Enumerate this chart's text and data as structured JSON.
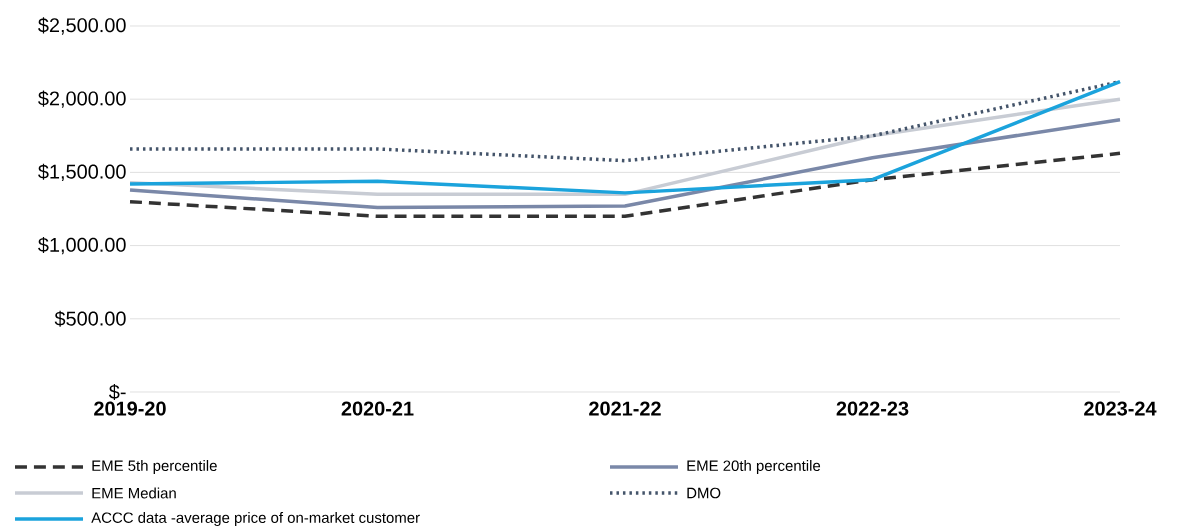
{
  "chart_data": {
    "type": "line",
    "categories": [
      "2019-20",
      "2020-21",
      "2021-22",
      "2022-23",
      "2023-24"
    ],
    "series": [
      {
        "name": "EME 5th percentile",
        "color": "#333333",
        "line_style": "dashed",
        "values": [
          1300,
          1200,
          1200,
          1450,
          1630
        ]
      },
      {
        "name": "EME 20th percentile",
        "color": "#7a88a8",
        "line_style": "solid",
        "values": [
          1380,
          1260,
          1270,
          1600,
          1860
        ]
      },
      {
        "name": "EME Median",
        "color": "#c8ccd4",
        "line_style": "solid",
        "values": [
          1430,
          1350,
          1350,
          1750,
          2000
        ]
      },
      {
        "name": "DMO",
        "color": "#44546a",
        "line_style": "dotted",
        "values": [
          1660,
          1660,
          1580,
          1750,
          2120
        ]
      },
      {
        "name": "ACCC data -average price of on-market customer",
        "color": "#1ba3dc",
        "line_style": "solid",
        "values": [
          1420,
          1440,
          1360,
          1450,
          2120
        ]
      }
    ],
    "ylim": [
      0,
      2500
    ],
    "yticks": [
      {
        "value": 0,
        "label": "$-"
      },
      {
        "value": 500,
        "label": "$500.00"
      },
      {
        "value": 1000,
        "label": "$1,000.00"
      },
      {
        "value": 1500,
        "label": "$1,500.00"
      },
      {
        "value": 2000,
        "label": "$2,000.00"
      },
      {
        "value": 2500,
        "label": "$2,500.00"
      }
    ],
    "grid": "y",
    "legend": "bottom",
    "marker": "none"
  }
}
